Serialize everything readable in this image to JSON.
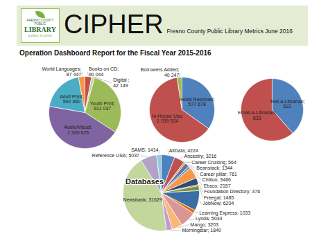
{
  "header": {
    "logo_lines": [
      "FRESNO COUNTY PUBLIC",
      "LIBRARY"
    ],
    "logo_tagline": "a place to grow.",
    "title": "CIPHER",
    "subtitle": "Fresno County Public Library Metrics June 2016"
  },
  "report_title": "Operation Dashboard Report for the Fiscal Year 2015-2016",
  "chart_data": [
    {
      "type": "pie",
      "data_labels": true,
      "categories": [
        "Books on CD",
        "Digital",
        "Youth Print",
        "Audio/Visual",
        "Adult Print",
        "World Languages"
      ],
      "values": [
        90044,
        42149,
        911037,
        1330625,
        592360,
        87447
      ],
      "value_labels": [
        "Books on CD; 90 044",
        "Digital ; 42 149",
        "Youth Print; 911 037",
        "Audio/Visual; 1 330 625",
        "Adult Print; 592 360",
        "World Languages; 87 447"
      ],
      "colors": [
        "#c0504d",
        "#c3d69b",
        "#9bbb59",
        "#8064a2",
        "#4bacc6",
        "#f79646"
      ]
    },
    {
      "type": "pie",
      "data_labels": true,
      "categories": [
        "Holds Resolved",
        "In-House Use",
        "Borrowers Added"
      ],
      "values": [
        577678,
        1039524,
        40247
      ],
      "value_labels": [
        "Holds Resolved; 577 678",
        "In-House Use; 1 039 524",
        "Borrowers Added; 40 247"
      ],
      "colors": [
        "#4f81bd",
        "#c0504d",
        "#9bbb59"
      ]
    },
    {
      "type": "pie",
      "data_labels": true,
      "categories": [
        "Text-a-Librarian",
        "Email-a-Librarian"
      ],
      "values": [
        522,
        833
      ],
      "value_labels": [
        "Text-a-Librarian; 522",
        "Email-a-Librarian; 833"
      ],
      "colors": [
        "#4f81bd",
        "#c0504d"
      ]
    },
    {
      "type": "pie",
      "title": "Databases",
      "data_labels": true,
      "categories": [
        "AllData",
        "Ancestry",
        "Career Cruising",
        "Beanstack",
        "Career pillar",
        "Chilton",
        "Ebsco",
        "Foundation Directory",
        "Freegal",
        "JobNow",
        "Learning Express",
        "Lynda",
        "Mango",
        "Morningstar",
        "Newsbank",
        "Reference USA",
        "SAMS"
      ],
      "values": [
        4224,
        3216,
        564,
        1344,
        761,
        3466,
        2157,
        376,
        1485,
        6204,
        1033,
        5034,
        3203,
        1840,
        31629,
        5037,
        1414
      ],
      "value_labels": [
        "AllData; 4224",
        "Ancestry; 3216",
        "Career Cruising; 564",
        "Beanstack; 1344",
        "Career pillar; 761",
        "Chilton; 3466",
        "Ebsco; 2157",
        "Foundation Directory; 376",
        "Freegal; 1485",
        "JobNow; 6204",
        "Learning Express; 1033",
        "Lynda; 5034",
        "Mango; 3203",
        "Morningstar; 1840",
        "Newsbank; 31629",
        "Reference USA; 5037",
        "SAMS; 1414"
      ],
      "colors": [
        "#4f81bd",
        "#c0504d",
        "#9bbb59",
        "#8064a2",
        "#4bacc6",
        "#f79646",
        "#2c4d75",
        "#943634",
        "#76923c",
        "#3a6ea5",
        "#e46c0a",
        "#d99694",
        "#fab777",
        "#c39bd3",
        "#c3d69b",
        "#b3a2c7",
        "#93cddd"
      ]
    }
  ]
}
